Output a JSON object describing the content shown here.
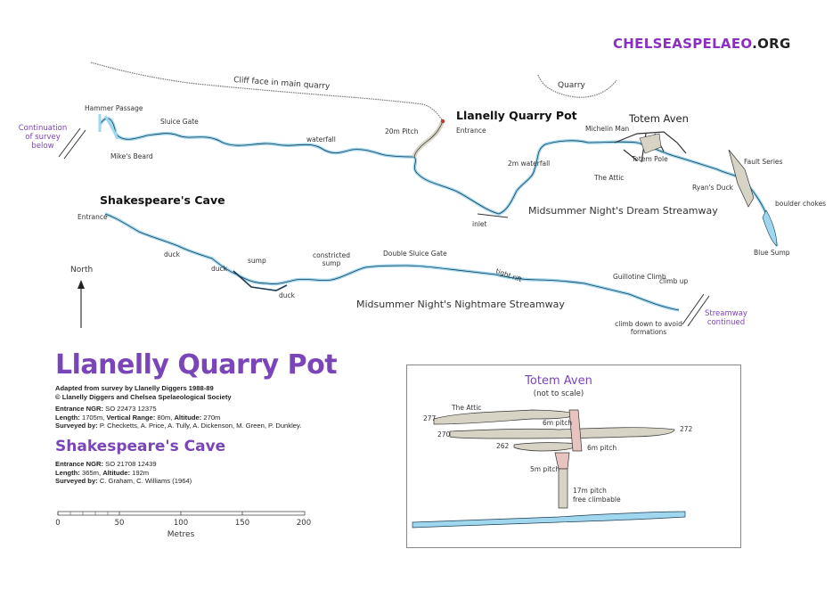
{
  "website": {
    "prefix": "CHELSEASPELAEO",
    "suffix": ".ORG"
  },
  "map_labels": {
    "cliff": "Cliff face in main quarry",
    "quarry": "Quarry",
    "llanelly_quarry_pot": "Llanelly Quarry Pot",
    "totem_aven": "Totem Aven",
    "shakespeares_cave": "Shakespeare's Cave",
    "hammer_passage": "Hammer Passage",
    "sluice_gate": "Sluice Gate",
    "mikes_beard": "Mike's Beard",
    "waterfall": "waterfall",
    "pitch_20m": "20m Pitch",
    "entrance_top": "Entrance",
    "michelin_man": "Michelin Man",
    "two_m_waterfall": "2m waterfall",
    "totem_pole": "Totem Pole",
    "the_attic": "The Attic",
    "fault_series": "Fault Series",
    "ryans_duck": "Ryan's Duck",
    "boulder_chokes": "boulder chokes",
    "blue_sump": "Blue Sump",
    "inlet": "inlet",
    "msnd_streamway": "Midsummer Night's Dream Streamway",
    "continuation": "Continuation of survey below",
    "entrance_left": "Entrance",
    "duck1": "duck",
    "duck2": "duck",
    "duck3": "duck",
    "sump": "sump",
    "constricted_sump": "constricted sump",
    "double_sluice_gate": "Double Sluice Gate",
    "tight_rift": "tight rift",
    "guillotine_climb": "Guillotine Climb",
    "climb_up": "climb up",
    "climb_down": "climb down to avoid formations",
    "streamway_continued": "Streamway continued",
    "msnn_streamway": "Midsummer Night's Nightmare Streamway",
    "north": "North"
  },
  "title_block": {
    "title": "Llanelly Quarry Pot",
    "adapted": "Adapted from survey by Llanelly Diggers 1988-89",
    "copyright": "© Llanelly Diggers and Chelsea Spelaeological Society",
    "ngr_label": "Entrance NGR:",
    "ngr_value": "SO 22473 12375",
    "length_label": "Length:",
    "length_value": "1705m,",
    "vrange_label": "Vertical Range:",
    "vrange_value": "80m,",
    "alt_label": "Altitude:",
    "alt_value": "270m",
    "surveyed_label": "Surveyed by:",
    "surveyed_value": "P. Checketts, A. Price, A. Tully, A. Dickenson, M. Green, P. Dunkley."
  },
  "shakespeare_block": {
    "title": "Shakespeare's Cave",
    "ngr_label": "Entrance NGR:",
    "ngr_value": "SO 21708 12439",
    "length_label": "Length:",
    "length_value": "365m,",
    "alt_label": "Altitude:",
    "alt_value": "192m",
    "surveyed_label": "Surveyed by:",
    "surveyed_value": "C. Graham, C. Williams (1964)"
  },
  "scale_bar": {
    "ticks": [
      "0",
      "50",
      "100",
      "150",
      "200"
    ],
    "unit": "Metres"
  },
  "inset": {
    "title": "Totem Aven",
    "subtitle": "(not to scale)",
    "the_attic": "The Attic",
    "h277": "277",
    "h270": "270",
    "h262": "262",
    "h272": "272",
    "pitch_6m_a": "6m pitch",
    "pitch_6m_b": "6m pitch",
    "pitch_5m": "5m pitch",
    "pitch_17m": "17m pitch",
    "free_climbable": "free climbable"
  },
  "colors": {
    "accent": "#7a45b8",
    "water": "#9fd8ee",
    "passage": "#d7d4c6"
  }
}
